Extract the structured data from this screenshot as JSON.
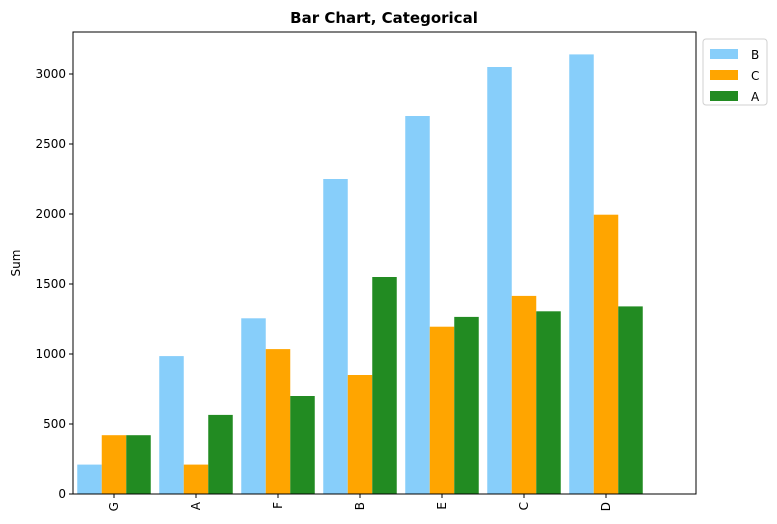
{
  "chart_data": {
    "type": "bar",
    "title": "Bar Chart, Categorical",
    "xlabel": "",
    "ylabel": "Sum",
    "categories": [
      "G",
      "A",
      "F",
      "B",
      "E",
      "C",
      "D"
    ],
    "series": [
      {
        "name": "B",
        "color": "#87CEFA",
        "values": [
          210,
          985,
          1255,
          2250,
          2700,
          3050,
          3140
        ]
      },
      {
        "name": "C",
        "color": "#FFA500",
        "values": [
          420,
          210,
          1035,
          850,
          1195,
          1415,
          1995
        ]
      },
      {
        "name": "A",
        "color": "#228B22",
        "values": [
          420,
          565,
          700,
          1550,
          1265,
          1305,
          1340
        ]
      }
    ],
    "ylim": [
      0,
      3300
    ],
    "yticks": [
      0,
      500,
      1000,
      1500,
      2000,
      2500,
      3000
    ],
    "grid": false,
    "legend_position": "outside top-right"
  }
}
